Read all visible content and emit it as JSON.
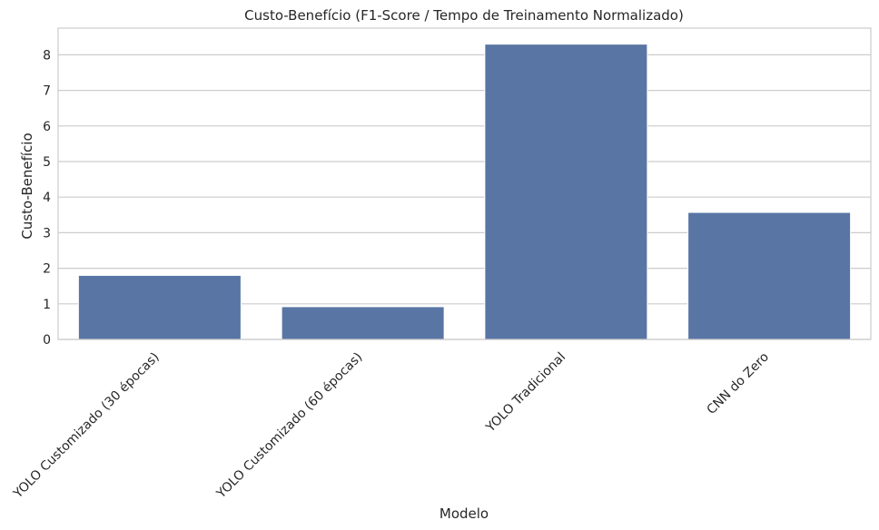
{
  "chart_data": {
    "type": "bar",
    "title": "Custo-Benefício (F1-Score / Tempo de Treinamento Normalizado)",
    "xlabel": "Modelo",
    "ylabel": "Custo-Benefício",
    "categories": [
      "YOLO Customizado (30 épocas)",
      "YOLO Customizado (60 épocas)",
      "YOLO Tradicional",
      "CNN do Zero"
    ],
    "values": [
      1.8,
      0.92,
      8.3,
      3.57
    ],
    "ylim": [
      0,
      8.75
    ],
    "yticks": [
      0,
      1,
      2,
      3,
      4,
      5,
      6,
      7,
      8
    ],
    "grid": "horizontal",
    "colors": {
      "bar": "#5875a4",
      "grid": "#cccccc",
      "axes": "#cccccc",
      "text": "#262626"
    }
  }
}
